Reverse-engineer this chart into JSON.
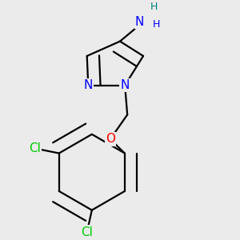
{
  "background_color": "#ebebeb",
  "atom_colors": {
    "N": "#0000ff",
    "O": "#ff0000",
    "Cl": "#00cc00",
    "C": "#000000",
    "H_teal": "#008080",
    "H_blue": "#0000ff"
  },
  "bond_color": "#000000",
  "bond_width": 1.6,
  "font_size_atoms": 11,
  "font_size_small": 9,
  "xlim": [
    0.05,
    0.95
  ],
  "ylim": [
    0.02,
    0.97
  ]
}
